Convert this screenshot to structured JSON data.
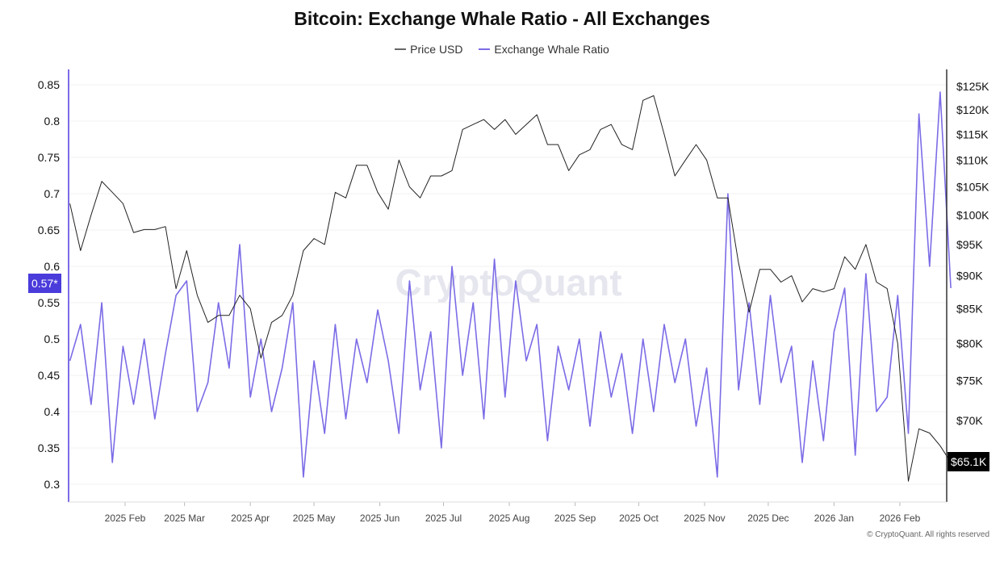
{
  "chart_data": {
    "type": "line",
    "title": "Bitcoin: Exchange Whale Ratio - All Exchanges",
    "x": [
      "2025-01-06",
      "2025-01-11",
      "2025-01-16",
      "2025-01-21",
      "2025-01-26",
      "2025-01-31",
      "2025-02-05",
      "2025-02-10",
      "2025-02-15",
      "2025-02-20",
      "2025-02-25",
      "2025-03-02",
      "2025-03-07",
      "2025-03-12",
      "2025-03-17",
      "2025-03-22",
      "2025-03-27",
      "2025-04-01",
      "2025-04-06",
      "2025-04-11",
      "2025-04-16",
      "2025-04-21",
      "2025-04-26",
      "2025-05-01",
      "2025-05-06",
      "2025-05-11",
      "2025-05-16",
      "2025-05-21",
      "2025-05-26",
      "2025-05-31",
      "2025-06-05",
      "2025-06-10",
      "2025-06-15",
      "2025-06-20",
      "2025-06-25",
      "2025-06-30",
      "2025-07-05",
      "2025-07-10",
      "2025-07-15",
      "2025-07-20",
      "2025-07-25",
      "2025-07-30",
      "2025-08-04",
      "2025-08-09",
      "2025-08-14",
      "2025-08-19",
      "2025-08-24",
      "2025-08-29",
      "2025-09-03",
      "2025-09-08",
      "2025-09-13",
      "2025-09-18",
      "2025-09-23",
      "2025-09-28",
      "2025-10-03",
      "2025-10-08",
      "2025-10-13",
      "2025-10-18",
      "2025-10-23",
      "2025-10-28",
      "2025-11-02",
      "2025-11-07",
      "2025-11-12",
      "2025-11-17",
      "2025-11-22",
      "2025-11-27",
      "2025-12-02",
      "2025-12-07",
      "2025-12-12",
      "2025-12-17",
      "2025-12-22",
      "2025-12-27",
      "2026-01-01",
      "2026-01-06",
      "2026-01-11",
      "2026-01-16",
      "2026-01-21",
      "2026-01-26",
      "2026-01-31",
      "2026-02-05",
      "2026-02-10",
      "2026-02-15",
      "2026-02-20",
      "2026-02-25"
    ],
    "series": [
      {
        "name": "Price USD",
        "axis": "right",
        "color": "#222222",
        "values": [
          102000,
          94000,
          100000,
          106000,
          104000,
          102000,
          97000,
          97500,
          97500,
          98000,
          88000,
          94000,
          87000,
          83000,
          84000,
          84000,
          87000,
          85000,
          78000,
          83000,
          84000,
          87000,
          94000,
          96000,
          95000,
          104000,
          103000,
          109000,
          109000,
          104000,
          101000,
          110000,
          105000,
          103000,
          107000,
          107000,
          108000,
          116000,
          117000,
          118000,
          116000,
          118000,
          115000,
          117000,
          119000,
          113000,
          113000,
          108000,
          111000,
          112000,
          116000,
          117000,
          113000,
          112000,
          122000,
          123000,
          115000,
          107000,
          110000,
          113000,
          110000,
          103000,
          103000,
          92000,
          84500,
          91000,
          91000,
          89000,
          90000,
          86000,
          88000,
          87500,
          88000,
          93000,
          91000,
          95000,
          89000,
          88000,
          80000,
          63000,
          69000,
          68500,
          67000,
          65100
        ]
      },
      {
        "name": "Exchange Whale Ratio",
        "axis": "left",
        "color": "#7b6ce6",
        "values": [
          0.47,
          0.52,
          0.41,
          0.55,
          0.33,
          0.49,
          0.41,
          0.5,
          0.39,
          0.48,
          0.56,
          0.58,
          0.4,
          0.44,
          0.55,
          0.46,
          0.63,
          0.42,
          0.5,
          0.4,
          0.46,
          0.55,
          0.31,
          0.47,
          0.37,
          0.52,
          0.39,
          0.5,
          0.44,
          0.54,
          0.47,
          0.37,
          0.58,
          0.43,
          0.51,
          0.35,
          0.6,
          0.45,
          0.55,
          0.39,
          0.61,
          0.42,
          0.58,
          0.47,
          0.52,
          0.36,
          0.49,
          0.43,
          0.5,
          0.38,
          0.51,
          0.42,
          0.48,
          0.37,
          0.5,
          0.4,
          0.52,
          0.44,
          0.5,
          0.38,
          0.46,
          0.31,
          0.7,
          0.43,
          0.55,
          0.41,
          0.56,
          0.44,
          0.49,
          0.33,
          0.47,
          0.36,
          0.51,
          0.57,
          0.34,
          0.59,
          0.4,
          0.42,
          0.56,
          0.37,
          0.81,
          0.6,
          0.84,
          0.57
        ]
      }
    ],
    "left_axis": {
      "scale": "linear",
      "range": [
        0.28,
        0.87
      ],
      "ticks": [
        "0.85",
        "0.8",
        "0.75",
        "0.7",
        "0.65",
        "0.6",
        "0.55",
        "0.5",
        "0.45",
        "0.4",
        "0.35",
        "0.3"
      ]
    },
    "right_axis": {
      "scale": "log",
      "ticks": [
        {
          "value": 125000,
          "label": "$125K"
        },
        {
          "value": 120000,
          "label": "$120K"
        },
        {
          "value": 115000,
          "label": "$115K"
        },
        {
          "value": 110000,
          "label": "$110K"
        },
        {
          "value": 105000,
          "label": "$105K"
        },
        {
          "value": 100000,
          "label": "$100K"
        },
        {
          "value": 95000,
          "label": "$95K"
        },
        {
          "value": 90000,
          "label": "$90K"
        },
        {
          "value": 85000,
          "label": "$85K"
        },
        {
          "value": 80000,
          "label": "$80K"
        },
        {
          "value": 75000,
          "label": "$75K"
        },
        {
          "value": 70000,
          "label": "$70K"
        }
      ]
    },
    "x_ticks": [
      {
        "date": "2025-02-01",
        "label": "2025 Feb"
      },
      {
        "date": "2025-03-01",
        "label": "2025 Mar"
      },
      {
        "date": "2025-04-01",
        "label": "2025 Apr"
      },
      {
        "date": "2025-05-01",
        "label": "2025 May"
      },
      {
        "date": "2025-06-01",
        "label": "2025 Jun"
      },
      {
        "date": "2025-07-01",
        "label": "2025 Jul"
      },
      {
        "date": "2025-08-01",
        "label": "2025 Aug"
      },
      {
        "date": "2025-09-01",
        "label": "2025 Sep"
      },
      {
        "date": "2025-10-01",
        "label": "2025 Oct"
      },
      {
        "date": "2025-11-01",
        "label": "2025 Nov"
      },
      {
        "date": "2025-12-01",
        "label": "2025 Dec"
      },
      {
        "date": "2026-01-01",
        "label": "2026 Jan"
      },
      {
        "date": "2026-02-01",
        "label": "2026 Feb"
      }
    ],
    "grid": true,
    "legend": "top-center",
    "last_value_labels": {
      "ratio": "0.57*",
      "price": "$65.1K"
    }
  },
  "legend": {
    "price": "Price USD",
    "ratio": "Exchange Whale Ratio"
  },
  "watermark": "CryptoQuant",
  "footer": "© CryptoQuant. All rights reserved",
  "colors": {
    "ratio": "#7b6ce6",
    "price": "#222222",
    "ratio_badge": "#4a3bdb",
    "price_badge": "#000000"
  }
}
